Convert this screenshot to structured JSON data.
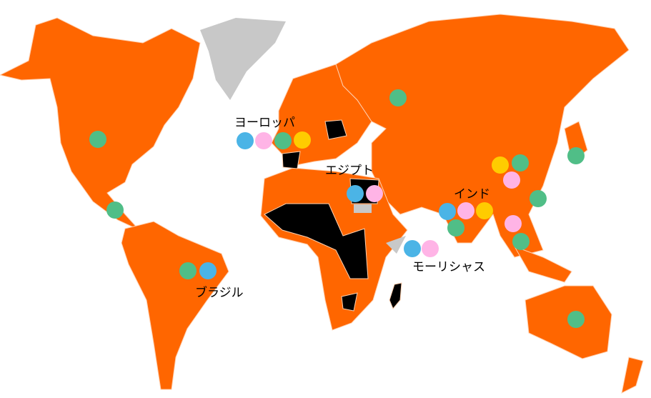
{
  "colors": {
    "land": "#FF6600",
    "excluded": "#000000",
    "no_data": "#C8C8C8",
    "blue": "#4BB4E6",
    "pink": "#FFB4E6",
    "green": "#50BE87",
    "yellow": "#FFCC00"
  },
  "labels": {
    "europe": "ヨーロッパ",
    "egypt": "エジプト",
    "india": "インド",
    "mauritius": "モーリシャス",
    "brazil": "ブラジル"
  },
  "markers": [
    {
      "region": "north-america",
      "color": "green"
    },
    {
      "region": "central-america",
      "color": "green"
    },
    {
      "region": "brazil",
      "colors": [
        "green",
        "blue"
      ]
    },
    {
      "region": "europe",
      "colors": [
        "blue",
        "pink",
        "green",
        "yellow"
      ]
    },
    {
      "region": "egypt",
      "colors": [
        "blue",
        "pink"
      ]
    },
    {
      "region": "russia",
      "color": "green"
    },
    {
      "region": "china",
      "colors": [
        "yellow",
        "green",
        "pink"
      ]
    },
    {
      "region": "japan",
      "color": "green"
    },
    {
      "region": "india",
      "colors": [
        "blue",
        "pink",
        "yellow",
        "green"
      ]
    },
    {
      "region": "southeast-asia",
      "colors": [
        "green",
        "pink",
        "green"
      ]
    },
    {
      "region": "mauritius",
      "colors": [
        "blue",
        "pink"
      ]
    },
    {
      "region": "australia",
      "color": "green"
    }
  ]
}
